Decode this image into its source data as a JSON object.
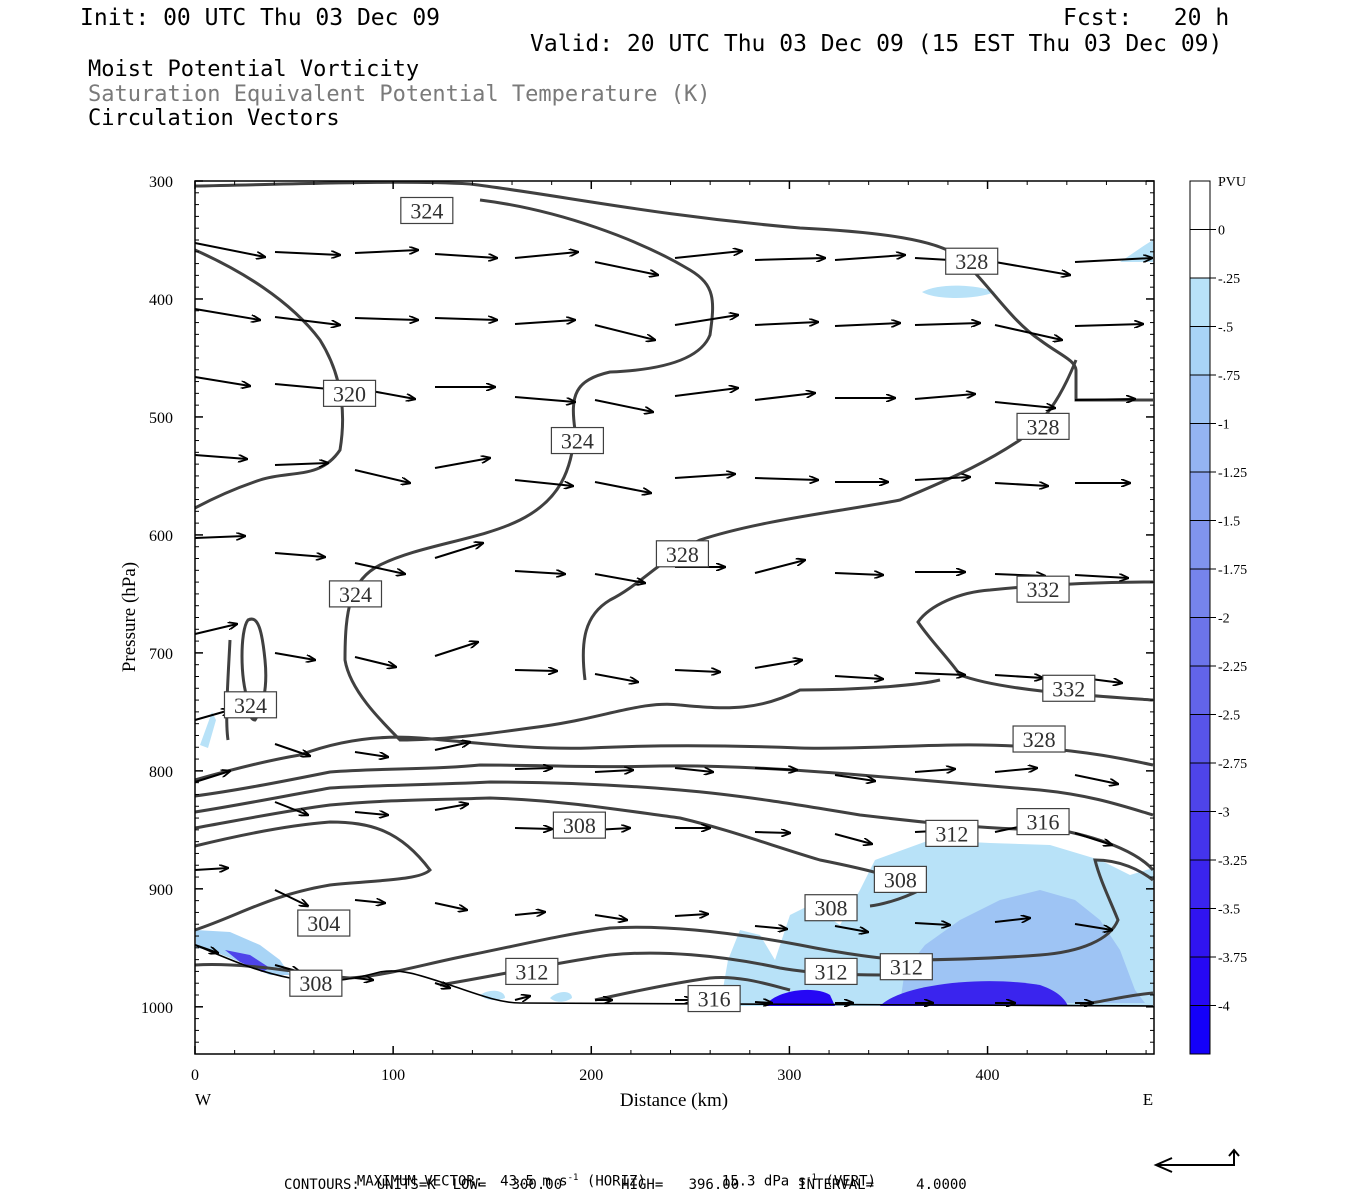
{
  "header": {
    "init": "Init: 00 UTC Thu 03 Dec 09",
    "fcst": "Fcst:   20 h",
    "valid": "Valid: 20 UTC Thu 03 Dec 09 (15 EST Thu 03 Dec 09)"
  },
  "titles": {
    "line1": "Moist Potential Vorticity",
    "line2": "Saturation Equivalent Potential Temperature (K)",
    "line3": "Circulation Vectors"
  },
  "colors": {
    "contour": "#404040",
    "vector": "#000000",
    "scale": [
      "#ffffff",
      "#ffffff",
      "#b8e2f8",
      "#a8d4f6",
      "#9ec4f4",
      "#94b4f2",
      "#8aa4f0",
      "#8094ee",
      "#7684ec",
      "#6c74ea",
      "#6264ea",
      "#5854ea",
      "#4e44ea",
      "#4434ec",
      "#3a24ee",
      "#3014f0",
      "#2608f4",
      "#1400fa"
    ]
  },
  "chart_data": {
    "type": "cross-section",
    "xlabel": "Distance (km)",
    "ylabel": "Pressure (hPa)",
    "xlim": [
      0,
      484
    ],
    "ylim": [
      1040,
      300
    ],
    "x_ticks": [
      0,
      100,
      200,
      300,
      400
    ],
    "y_ticks": [
      300,
      400,
      500,
      600,
      700,
      800,
      900,
      1000
    ],
    "x_end_labels": {
      "left": "W",
      "right": "E"
    },
    "colorbar": {
      "unit": "PVU",
      "labels": [
        "0",
        "-.25",
        "-.5",
        "-.75",
        "-1",
        "-1.25",
        "-1.5",
        "-1.75",
        "-2",
        "-2.25",
        "-2.5",
        "-2.75",
        "-3",
        "-3.25",
        "-3.5",
        "-3.75",
        "-4"
      ]
    },
    "contour_labels": [
      {
        "text": "324",
        "x": 117,
        "p": 325
      },
      {
        "text": "328",
        "x": 392,
        "p": 368
      },
      {
        "text": "320",
        "x": 78,
        "p": 480
      },
      {
        "text": "324",
        "x": 193,
        "p": 520
      },
      {
        "text": "328",
        "x": 428,
        "p": 508
      },
      {
        "text": "328",
        "x": 246,
        "p": 616
      },
      {
        "text": "324",
        "x": 81,
        "p": 650
      },
      {
        "text": "332",
        "x": 428,
        "p": 646
      },
      {
        "text": "332",
        "x": 441,
        "p": 730
      },
      {
        "text": "324",
        "x": 28,
        "p": 744
      },
      {
        "text": "328",
        "x": 426,
        "p": 773
      },
      {
        "text": "308",
        "x": 194,
        "p": 846
      },
      {
        "text": "312",
        "x": 382,
        "p": 853
      },
      {
        "text": "316",
        "x": 428,
        "p": 843
      },
      {
        "text": "308",
        "x": 356,
        "p": 892
      },
      {
        "text": "308",
        "x": 321,
        "p": 916
      },
      {
        "text": "304",
        "x": 65,
        "p": 929
      },
      {
        "text": "312",
        "x": 170,
        "p": 970
      },
      {
        "text": "312",
        "x": 321,
        "p": 970
      },
      {
        "text": "312",
        "x": 359,
        "p": 966
      },
      {
        "text": "308",
        "x": 61,
        "p": 980
      },
      {
        "text": "316",
        "x": 262,
        "p": 993
      }
    ]
  },
  "footer": {
    "max_vector_label": "MAXIMUM VECTOR:",
    "horiz_value": "43.5",
    "horiz_unit": "m s",
    "horiz_exp": "-1",
    "horiz_tag": "(HORIZ)",
    "vert_value": "15.3",
    "vert_unit": "dPa s",
    "vert_exp": "-1",
    "vert_tag": "(VERT)",
    "contours_line": "CONTOURS:  UNITS=K  LOW=   300.00       HIGH=   396.00       INTERVAL=     4.0000"
  }
}
